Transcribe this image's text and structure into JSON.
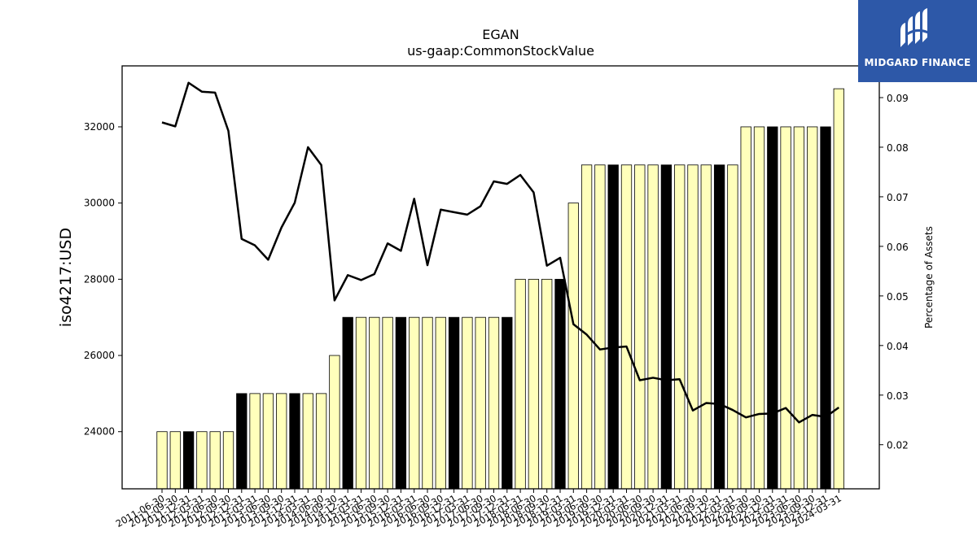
{
  "chart_data": {
    "type": "bar",
    "title": "EGAN",
    "subtitle": "us-gaap:CommonStockValue",
    "ylabel": "iso4217:USD",
    "y2label": "Percentage of Assets",
    "ylim": [
      22500,
      33600
    ],
    "y2lim": [
      0.0111,
      0.0964
    ],
    "yticks": [
      24000,
      26000,
      28000,
      30000,
      32000
    ],
    "y2ticks": [
      0.02,
      0.03,
      0.04,
      0.05,
      0.06,
      0.07,
      0.08,
      0.09
    ],
    "categories": [
      "2011-06-30",
      "2011-09-30",
      "2011-12-31",
      "2012-03-31",
      "2012-06-30",
      "2012-09-30",
      "2012-12-31",
      "2013-03-31",
      "2013-06-30",
      "2013-09-30",
      "2013-12-31",
      "2014-03-31",
      "2014-06-30",
      "2014-09-30",
      "2014-12-31",
      "2015-03-31",
      "2015-06-30",
      "2015-09-30",
      "2015-12-31",
      "2016-03-31",
      "2016-06-30",
      "2016-09-30",
      "2016-12-31",
      "2017-03-31",
      "2017-06-30",
      "2017-09-30",
      "2017-12-31",
      "2018-03-31",
      "2018-06-30",
      "2018-09-30",
      "2018-12-31",
      "2019-03-31",
      "2019-06-30",
      "2019-09-30",
      "2019-12-31",
      "2020-03-31",
      "2020-06-30",
      "2020-09-30",
      "2020-12-31",
      "2021-03-31",
      "2021-06-30",
      "2021-09-30",
      "2021-12-31",
      "2022-03-31",
      "2022-06-30",
      "2022-09-30",
      "2022-12-31",
      "2023-03-31",
      "2023-06-30",
      "2023-09-30",
      "2023-12-31",
      "2024-03-31"
    ],
    "series": [
      {
        "kind": "bar",
        "values": [
          24000,
          24000,
          24000,
          24000,
          24000,
          24000,
          25000,
          25000,
          25000,
          25000,
          25000,
          25000,
          25000,
          26000,
          27000,
          27000,
          27000,
          27000,
          27000,
          27000,
          27000,
          27000,
          27000,
          27000,
          27000,
          27000,
          27000,
          28000,
          28000,
          28000,
          28000,
          30000,
          31000,
          31000,
          31000,
          31000,
          31000,
          31000,
          31000,
          31000,
          31000,
          31000,
          31000,
          31000,
          32000,
          32000,
          32000,
          32000,
          32000,
          32000,
          32000,
          33000
        ],
        "highlight": [
          2,
          6,
          10,
          14,
          18,
          22,
          26,
          30,
          34,
          38,
          42,
          46,
          50
        ],
        "color": "#ffffbb",
        "highlight_color": "#000000"
      },
      {
        "kind": "line",
        "axis": "right",
        "values": [
          0.085,
          0.0842,
          0.093,
          0.0912,
          0.091,
          0.0833,
          0.0615,
          0.0602,
          0.0573,
          0.0638,
          0.0688,
          0.08,
          0.0764,
          0.0491,
          0.0542,
          0.0532,
          0.0544,
          0.0606,
          0.0591,
          0.0696,
          0.0562,
          0.0674,
          0.0669,
          0.0664,
          0.0681,
          0.0731,
          0.0726,
          0.0744,
          0.0709,
          0.0561,
          0.0577,
          0.0443,
          0.0422,
          0.0392,
          0.0396,
          0.0398,
          0.033,
          0.0335,
          0.033,
          0.0332,
          0.0269,
          0.0284,
          0.0282,
          0.027,
          0.0255,
          0.0262,
          0.0263,
          0.0274,
          0.0245,
          0.026,
          0.0256,
          0.0275
        ],
        "color": "#000000"
      }
    ],
    "grid": false
  },
  "logo": {
    "text": "MIDGARD FINANCE",
    "background": "#2d58a8"
  }
}
